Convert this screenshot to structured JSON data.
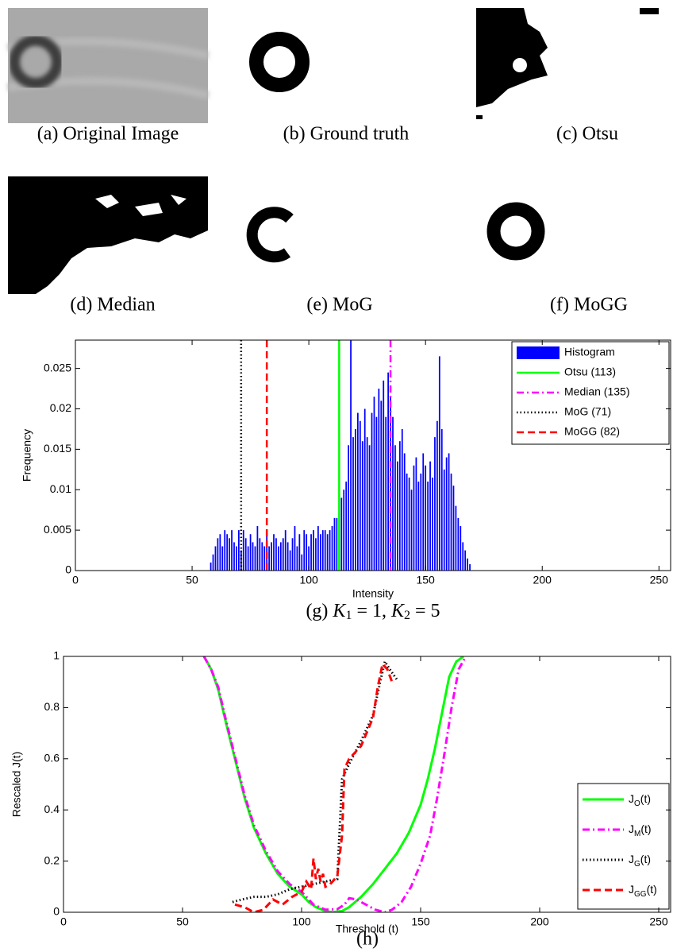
{
  "panels": [
    {
      "caption": "(a) Original Image"
    },
    {
      "caption": "(b) Ground truth"
    },
    {
      "caption": "(c) Otsu"
    },
    {
      "caption": "(d) Median"
    },
    {
      "caption": "(e) MoG"
    },
    {
      "caption": "(f) MoGG"
    }
  ],
  "chart_data": [
    {
      "type": "bar",
      "xlabel": "Intensity",
      "ylabel": "Frequency",
      "xlim": [
        0,
        255
      ],
      "ylim": [
        0,
        0.0285
      ],
      "xticks": [
        0,
        50,
        100,
        150,
        200,
        250
      ],
      "yticks": [
        0,
        0.005,
        0.01,
        0.015,
        0.02,
        0.025
      ],
      "legend": "upper right",
      "x": [
        58,
        59,
        60,
        61,
        62,
        63,
        64,
        65,
        66,
        67,
        68,
        69,
        70,
        71,
        72,
        73,
        74,
        75,
        76,
        77,
        78,
        79,
        80,
        81,
        82,
        83,
        84,
        85,
        86,
        87,
        88,
        89,
        90,
        91,
        92,
        93,
        94,
        95,
        96,
        97,
        98,
        99,
        100,
        101,
        102,
        103,
        104,
        105,
        106,
        107,
        108,
        109,
        110,
        111,
        112,
        113,
        114,
        115,
        116,
        117,
        118,
        119,
        120,
        121,
        122,
        123,
        124,
        125,
        126,
        127,
        128,
        129,
        130,
        131,
        132,
        133,
        134,
        135,
        136,
        137,
        138,
        139,
        140,
        141,
        142,
        143,
        144,
        145,
        146,
        147,
        148,
        149,
        150,
        151,
        152,
        153,
        154,
        155,
        156,
        157,
        158,
        159,
        160,
        161,
        162,
        163,
        164,
        165,
        166,
        167,
        168,
        169
      ],
      "series": [
        {
          "name": "Histogram",
          "color": "#0000ff",
          "values": [
            0.001,
            0.002,
            0.003,
            0.004,
            0.0045,
            0.003,
            0.005,
            0.0045,
            0.004,
            0.005,
            0.0035,
            0.003,
            0.005,
            0.0025,
            0.005,
            0.004,
            0.003,
            0.0045,
            0.0035,
            0.003,
            0.0055,
            0.004,
            0.0035,
            0.003,
            0.0045,
            0.003,
            0.0035,
            0.0045,
            0.004,
            0.003,
            0.0035,
            0.004,
            0.005,
            0.0035,
            0.0025,
            0.004,
            0.0055,
            0.003,
            0.0045,
            0.002,
            0.005,
            0.0045,
            0.003,
            0.0045,
            0.005,
            0.004,
            0.0055,
            0.0045,
            0.005,
            0.005,
            0.0045,
            0.005,
            0.0055,
            0.0065,
            0.0065,
            0.0075,
            0.009,
            0.01,
            0.011,
            0.0155,
            0.031,
            0.0165,
            0.0175,
            0.0195,
            0.0185,
            0.016,
            0.02,
            0.0165,
            0.0155,
            0.0195,
            0.0215,
            0.019,
            0.0225,
            0.021,
            0.0235,
            0.019,
            0.0245,
            0.0215,
            0.019,
            0.0155,
            0.0135,
            0.016,
            0.0175,
            0.0145,
            0.012,
            0.0115,
            0.01,
            0.013,
            0.014,
            0.011,
            0.012,
            0.0145,
            0.013,
            0.011,
            0.0135,
            0.0115,
            0.0165,
            0.0185,
            0.0265,
            0.0175,
            0.0125,
            0.014,
            0.0145,
            0.012,
            0.0105,
            0.008,
            0.0065,
            0.0055,
            0.0035,
            0.0025,
            0.0015,
            0.0008
          ]
        }
      ],
      "thresholds": [
        {
          "name": "Otsu (113)",
          "x": 113,
          "color": "#00ff00",
          "dash": "solid"
        },
        {
          "name": "Median (135)",
          "x": 135,
          "color": "#ff00ff",
          "dash": "dashdot"
        },
        {
          "name": "MoG (71)",
          "x": 71,
          "color": "#000000",
          "dash": "dotted"
        },
        {
          "name": "MoGG (82)",
          "x": 82,
          "color": "#ff0000",
          "dash": "dashed"
        }
      ],
      "caption": [
        "(g) ",
        "K",
        "1",
        " = 1, ",
        "K",
        "2",
        " = 5"
      ]
    },
    {
      "type": "line",
      "xlabel": "Threshold (t)",
      "ylabel": "Rescaled J(t)",
      "xlim": [
        0,
        255
      ],
      "ylim": [
        0,
        1
      ],
      "xticks": [
        0,
        50,
        100,
        150,
        200,
        250
      ],
      "yticks": [
        0,
        0.2,
        0.4,
        0.6,
        0.8,
        1
      ],
      "legend": "lower right",
      "series": [
        {
          "name": "J",
          "subscript": "O",
          "suffix": "(t)",
          "color": "#00ff00",
          "dash": "solid",
          "x": [
            59,
            62,
            65,
            68,
            72,
            76,
            80,
            85,
            90,
            95,
            100,
            103,
            106,
            110,
            113,
            117,
            120,
            125,
            130,
            135,
            140,
            145,
            150,
            153,
            156,
            159,
            162,
            165,
            168
          ],
          "values": [
            1,
            0.95,
            0.87,
            0.75,
            0.6,
            0.45,
            0.33,
            0.23,
            0.15,
            0.1,
            0.07,
            0.04,
            0.02,
            0.005,
            0,
            0.005,
            0.02,
            0.06,
            0.11,
            0.17,
            0.23,
            0.31,
            0.42,
            0.52,
            0.64,
            0.78,
            0.92,
            0.98,
            1
          ]
        },
        {
          "name": "J",
          "subscript": "M",
          "suffix": "(t)",
          "color": "#ff00ff",
          "dash": "dashdot",
          "x": [
            59,
            62,
            65,
            68,
            72,
            76,
            80,
            85,
            90,
            95,
            100,
            105,
            110,
            115,
            118,
            120,
            123,
            127,
            131,
            135,
            138,
            142,
            146,
            150,
            154,
            157,
            160,
            163,
            166,
            169
          ],
          "values": [
            1,
            0.95,
            0.88,
            0.76,
            0.61,
            0.46,
            0.34,
            0.24,
            0.16,
            0.11,
            0.08,
            0.03,
            0.01,
            0.012,
            0.03,
            0.055,
            0.05,
            0.03,
            0.01,
            0,
            0.01,
            0.04,
            0.1,
            0.19,
            0.3,
            0.45,
            0.62,
            0.8,
            0.95,
            1
          ]
        },
        {
          "name": "J",
          "subscript": "G",
          "suffix": "(t)",
          "color": "#000000",
          "dash": "dotted",
          "x": [
            71,
            75,
            80,
            85,
            90,
            95,
            100,
            105,
            110,
            115,
            117,
            120,
            125,
            130,
            133,
            135,
            137,
            140
          ],
          "values": [
            0.04,
            0.05,
            0.06,
            0.06,
            0.07,
            0.09,
            0.1,
            0.11,
            0.12,
            0.13,
            0.52,
            0.58,
            0.67,
            0.77,
            0.9,
            0.98,
            0.95,
            0.91
          ]
        },
        {
          "name": "J",
          "subscript": "GG",
          "suffix": "(t)",
          "color": "#ff0000",
          "dash": "dashed",
          "x": [
            72,
            76,
            80,
            84,
            88,
            92,
            96,
            100,
            102,
            104,
            105,
            106,
            107,
            108,
            109,
            110,
            112,
            115,
            117,
            118,
            120,
            125,
            130,
            132,
            134,
            136,
            138
          ],
          "values": [
            0.03,
            0.02,
            0,
            0.01,
            0.05,
            0.03,
            0.06,
            0.08,
            0.12,
            0.09,
            0.21,
            0.13,
            0.17,
            0.12,
            0.15,
            0.1,
            0.11,
            0.14,
            0.3,
            0.56,
            0.6,
            0.65,
            0.76,
            0.88,
            0.97,
            0.95,
            0.9
          ]
        }
      ],
      "caption": [
        "(h)"
      ]
    }
  ]
}
